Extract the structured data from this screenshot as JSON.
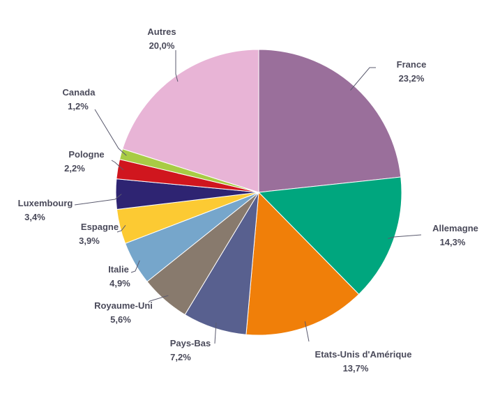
{
  "chart_data": {
    "type": "pie",
    "title": "",
    "start": "top, clockwise",
    "slices": [
      {
        "name": "France",
        "value": 23.2,
        "label": "23,2%",
        "color": "#9a6f9b"
      },
      {
        "name": "Allemagne",
        "value": 14.3,
        "label": "14,3%",
        "color": "#00a67e"
      },
      {
        "name": "Etats-Unis d'Amérique",
        "value": 13.7,
        "label": "13,7%",
        "color": "#f07f09"
      },
      {
        "name": "Pays-Bas",
        "value": 7.2,
        "label": "7,2%",
        "color": "#58608f"
      },
      {
        "name": "Royaume-Uni",
        "value": 5.6,
        "label": "5,6%",
        "color": "#887a6d"
      },
      {
        "name": "Italie",
        "value": 4.9,
        "label": "4,9%",
        "color": "#76a6cb"
      },
      {
        "name": "Espagne",
        "value": 3.9,
        "label": "3,9%",
        "color": "#fcca33"
      },
      {
        "name": "Luxembourg",
        "value": 3.4,
        "label": "3,4%",
        "color": "#2e2472"
      },
      {
        "name": "Pologne",
        "value": 2.2,
        "label": "2,2%",
        "color": "#d0161e"
      },
      {
        "name": "Canada",
        "value": 1.2,
        "label": "1,2%",
        "color": "#a8cc45"
      },
      {
        "name": "Autres",
        "value": 20.0,
        "label": "20,0%",
        "color": "#e8b4d6"
      }
    ]
  }
}
